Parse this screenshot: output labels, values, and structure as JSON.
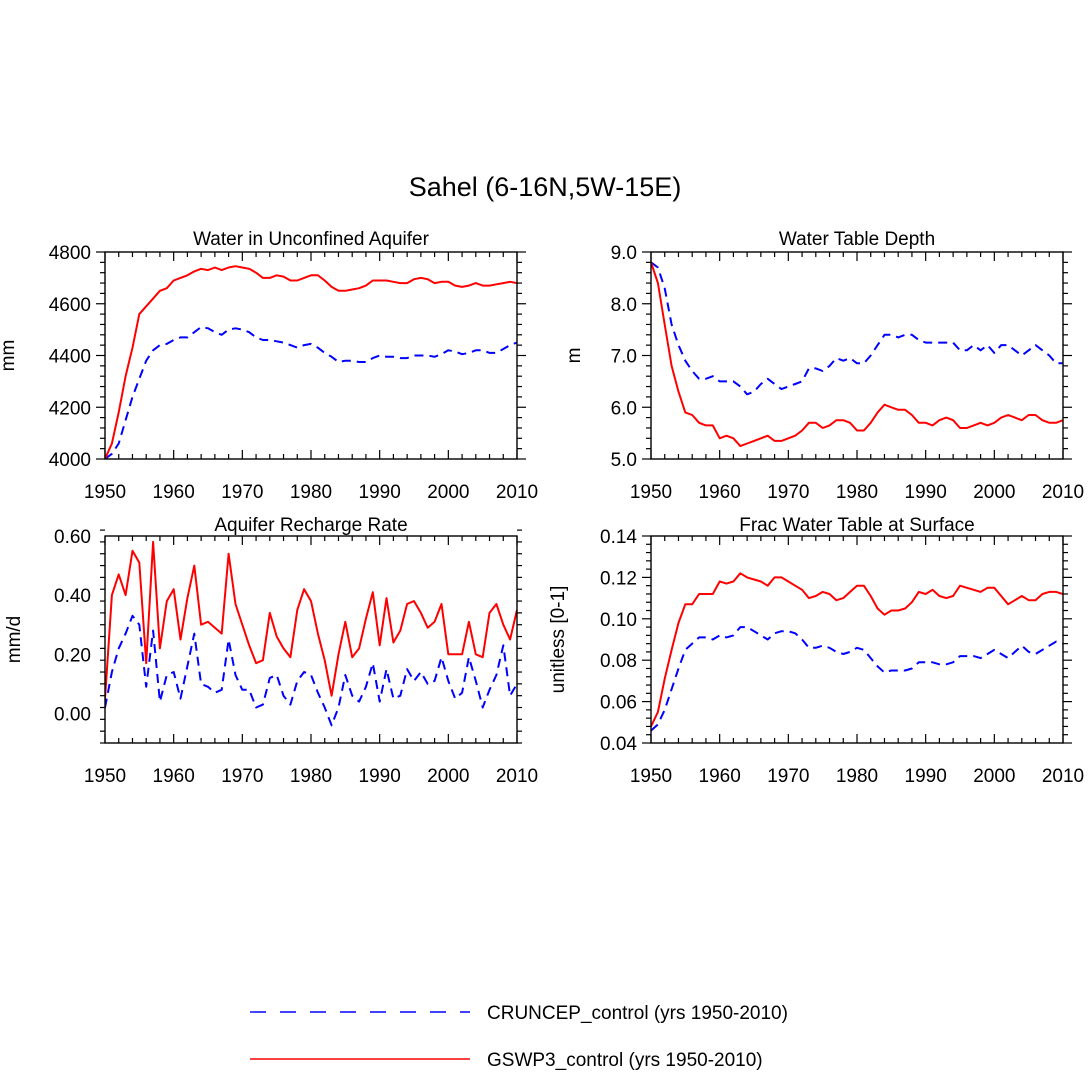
{
  "figure_title": "Sahel (6-16N,5W-15E)",
  "colors": {
    "series_a": "#0000ff",
    "series_b": "#ff0000",
    "axis": "#000000"
  },
  "legend": [
    {
      "name": "CRUNCEP_control (yrs 1950-2010)",
      "style": "dashed",
      "color": "#0000ff"
    },
    {
      "name": "GSWP3_control (yrs 1950-2010)",
      "style": "solid",
      "color": "#ff0000"
    }
  ],
  "chart_data": [
    {
      "type": "line",
      "title": "Water in Unconfined Aquifer",
      "xlabel": "",
      "ylabel": "mm",
      "xlim": [
        1950,
        2010
      ],
      "ylim": [
        4000,
        4800
      ],
      "xticks": [
        1950,
        1960,
        1970,
        1980,
        1990,
        2000,
        2010
      ],
      "xtick_labels": [
        "1950",
        "1960",
        "1970",
        "1980",
        "1990",
        "2000",
        "2010"
      ],
      "yticks": [
        4000,
        4200,
        4400,
        4600,
        4800
      ],
      "ytick_labels": [
        "4000",
        "4200",
        "4400",
        "4600",
        "4800"
      ],
      "x": [
        1950,
        1951,
        1952,
        1953,
        1954,
        1955,
        1956,
        1957,
        1958,
        1959,
        1960,
        1961,
        1962,
        1963,
        1964,
        1965,
        1966,
        1967,
        1968,
        1969,
        1970,
        1971,
        1972,
        1973,
        1974,
        1975,
        1976,
        1977,
        1978,
        1979,
        1980,
        1981,
        1982,
        1983,
        1984,
        1985,
        1986,
        1987,
        1988,
        1989,
        1990,
        1991,
        1992,
        1993,
        1994,
        1995,
        1996,
        1997,
        1998,
        1999,
        2000,
        2001,
        2002,
        2003,
        2004,
        2005,
        2006,
        2007,
        2008,
        2009,
        2010
      ],
      "series": [
        {
          "name": "CRUNCEP_control (yrs 1950-2010)",
          "style": "dashed",
          "values": [
            4000,
            4020,
            4060,
            4150,
            4240,
            4310,
            4380,
            4420,
            4440,
            4445,
            4460,
            4470,
            4470,
            4490,
            4510,
            4505,
            4490,
            4480,
            4500,
            4505,
            4500,
            4490,
            4470,
            4460,
            4460,
            4455,
            4450,
            4440,
            4430,
            4440,
            4445,
            4430,
            4410,
            4395,
            4375,
            4380,
            4380,
            4375,
            4375,
            4390,
            4400,
            4395,
            4395,
            4390,
            4390,
            4400,
            4400,
            4400,
            4395,
            4405,
            4420,
            4415,
            4405,
            4410,
            4420,
            4420,
            4410,
            4410,
            4425,
            4440,
            4450
          ]
        },
        {
          "name": "GSWP3_control (yrs 1950-2010)",
          "style": "solid",
          "values": [
            4000,
            4060,
            4180,
            4320,
            4430,
            4560,
            4590,
            4620,
            4650,
            4660,
            4690,
            4700,
            4710,
            4725,
            4735,
            4730,
            4740,
            4730,
            4740,
            4745,
            4740,
            4735,
            4720,
            4700,
            4700,
            4710,
            4705,
            4690,
            4690,
            4700,
            4710,
            4710,
            4690,
            4665,
            4650,
            4650,
            4655,
            4660,
            4670,
            4690,
            4690,
            4690,
            4685,
            4680,
            4680,
            4695,
            4700,
            4695,
            4680,
            4685,
            4685,
            4670,
            4665,
            4670,
            4680,
            4670,
            4670,
            4675,
            4680,
            4685,
            4680
          ]
        }
      ]
    },
    {
      "type": "line",
      "title": "Water Table Depth",
      "xlabel": "",
      "ylabel": "m",
      "xlim": [
        1950,
        2010
      ],
      "ylim": [
        5.0,
        9.0
      ],
      "xticks": [
        1950,
        1960,
        1970,
        1980,
        1990,
        2000,
        2010
      ],
      "xtick_labels": [
        "1950",
        "1960",
        "1970",
        "1980",
        "1990",
        "2000",
        "2010"
      ],
      "yticks": [
        5,
        6,
        7,
        8,
        9
      ],
      "ytick_labels": [
        "5.0",
        "6.0",
        "7.0",
        "8.0",
        "9.0"
      ],
      "x": [
        1950,
        1951,
        1952,
        1953,
        1954,
        1955,
        1956,
        1957,
        1958,
        1959,
        1960,
        1961,
        1962,
        1963,
        1964,
        1965,
        1966,
        1967,
        1968,
        1969,
        1970,
        1971,
        1972,
        1973,
        1974,
        1975,
        1976,
        1977,
        1978,
        1979,
        1980,
        1981,
        1982,
        1983,
        1984,
        1985,
        1986,
        1987,
        1988,
        1989,
        1990,
        1991,
        1992,
        1993,
        1994,
        1995,
        1996,
        1997,
        1998,
        1999,
        2000,
        2001,
        2002,
        2003,
        2004,
        2005,
        2006,
        2007,
        2008,
        2009,
        2010
      ],
      "series": [
        {
          "name": "CRUNCEP_control (yrs 1950-2010)",
          "style": "dashed",
          "values": [
            8.8,
            8.7,
            8.3,
            7.6,
            7.2,
            6.9,
            6.7,
            6.55,
            6.55,
            6.6,
            6.5,
            6.5,
            6.5,
            6.4,
            6.25,
            6.3,
            6.45,
            6.55,
            6.45,
            6.35,
            6.4,
            6.45,
            6.5,
            6.75,
            6.75,
            6.7,
            6.8,
            6.95,
            6.9,
            6.95,
            6.85,
            6.85,
            7.0,
            7.2,
            7.4,
            7.4,
            7.35,
            7.4,
            7.4,
            7.3,
            7.25,
            7.25,
            7.25,
            7.25,
            7.25,
            7.1,
            7.1,
            7.2,
            7.1,
            7.2,
            7.05,
            7.2,
            7.2,
            7.1,
            7.0,
            7.1,
            7.2,
            7.1,
            7.0,
            6.85,
            6.85
          ]
        },
        {
          "name": "GSWP3_control (yrs 1950-2010)",
          "style": "solid",
          "values": [
            8.8,
            8.4,
            7.6,
            6.8,
            6.3,
            5.9,
            5.85,
            5.7,
            5.65,
            5.65,
            5.4,
            5.45,
            5.4,
            5.25,
            5.3,
            5.35,
            5.4,
            5.45,
            5.35,
            5.35,
            5.4,
            5.45,
            5.55,
            5.7,
            5.7,
            5.6,
            5.65,
            5.75,
            5.75,
            5.7,
            5.55,
            5.55,
            5.7,
            5.9,
            6.05,
            6.0,
            5.95,
            5.95,
            5.85,
            5.7,
            5.7,
            5.65,
            5.75,
            5.8,
            5.75,
            5.6,
            5.6,
            5.65,
            5.7,
            5.65,
            5.7,
            5.8,
            5.85,
            5.8,
            5.75,
            5.85,
            5.85,
            5.75,
            5.7,
            5.7,
            5.75
          ]
        }
      ]
    },
    {
      "type": "line",
      "title": "Aquifer Recharge Rate",
      "xlabel": "",
      "ylabel": "mm/d",
      "xlim": [
        1950,
        2010
      ],
      "ylim": [
        -0.1,
        0.6
      ],
      "xticks": [
        1950,
        1960,
        1970,
        1980,
        1990,
        2000,
        2010
      ],
      "xtick_labels": [
        "1950",
        "1960",
        "1970",
        "1980",
        "1990",
        "2000",
        "2010"
      ],
      "yticks": [
        0.0,
        0.2,
        0.4,
        0.6
      ],
      "ytick_labels": [
        "0.00",
        "0.20",
        "0.40",
        "0.60"
      ],
      "x": [
        1950,
        1951,
        1952,
        1953,
        1954,
        1955,
        1956,
        1957,
        1958,
        1959,
        1960,
        1961,
        1962,
        1963,
        1964,
        1965,
        1966,
        1967,
        1968,
        1969,
        1970,
        1971,
        1972,
        1973,
        1974,
        1975,
        1976,
        1977,
        1978,
        1979,
        1980,
        1981,
        1982,
        1983,
        1984,
        1985,
        1986,
        1987,
        1988,
        1989,
        1990,
        1991,
        1992,
        1993,
        1994,
        1995,
        1996,
        1997,
        1998,
        1999,
        2000,
        2001,
        2002,
        2003,
        2004,
        2005,
        2006,
        2007,
        2008,
        2009,
        2010
      ],
      "series": [
        {
          "name": "CRUNCEP_control (yrs 1950-2010)",
          "style": "dashed",
          "values": [
            0.02,
            0.14,
            0.22,
            0.27,
            0.33,
            0.3,
            0.09,
            0.28,
            0.04,
            0.13,
            0.14,
            0.05,
            0.16,
            0.27,
            0.1,
            0.09,
            0.07,
            0.08,
            0.25,
            0.13,
            0.08,
            0.08,
            0.02,
            0.03,
            0.12,
            0.13,
            0.06,
            0.03,
            0.11,
            0.14,
            0.13,
            0.07,
            0.02,
            -0.04,
            0.02,
            0.13,
            0.06,
            0.04,
            0.09,
            0.17,
            0.04,
            0.15,
            0.05,
            0.06,
            0.15,
            0.11,
            0.14,
            0.1,
            0.11,
            0.19,
            0.11,
            0.05,
            0.07,
            0.19,
            0.11,
            0.02,
            0.08,
            0.13,
            0.23,
            0.06,
            0.1
          ]
        },
        {
          "name": "GSWP3_control (yrs 1950-2010)",
          "style": "solid",
          "values": [
            0.05,
            0.4,
            0.47,
            0.4,
            0.55,
            0.51,
            0.17,
            0.58,
            0.22,
            0.38,
            0.42,
            0.25,
            0.39,
            0.5,
            0.3,
            0.31,
            0.29,
            0.27,
            0.54,
            0.37,
            0.3,
            0.23,
            0.17,
            0.18,
            0.34,
            0.26,
            0.22,
            0.19,
            0.35,
            0.42,
            0.38,
            0.27,
            0.18,
            0.06,
            0.2,
            0.31,
            0.19,
            0.22,
            0.32,
            0.41,
            0.23,
            0.39,
            0.24,
            0.28,
            0.37,
            0.38,
            0.34,
            0.29,
            0.31,
            0.37,
            0.2,
            0.2,
            0.2,
            0.31,
            0.2,
            0.19,
            0.34,
            0.37,
            0.3,
            0.25,
            0.35
          ]
        }
      ]
    },
    {
      "type": "line",
      "title": "Frac Water Table at Surface",
      "xlabel": "",
      "ylabel": "unitless [0-1]",
      "xlim": [
        1950,
        2010
      ],
      "ylim": [
        0.04,
        0.14
      ],
      "xticks": [
        1950,
        1960,
        1970,
        1980,
        1990,
        2000,
        2010
      ],
      "xtick_labels": [
        "1950",
        "1960",
        "1970",
        "1980",
        "1990",
        "2000",
        "2010"
      ],
      "yticks": [
        0.04,
        0.06,
        0.08,
        0.1,
        0.12,
        0.14
      ],
      "ytick_labels": [
        "0.04",
        "0.06",
        "0.08",
        "0.10",
        "0.12",
        "0.14"
      ],
      "x": [
        1950,
        1951,
        1952,
        1953,
        1954,
        1955,
        1956,
        1957,
        1958,
        1959,
        1960,
        1961,
        1962,
        1963,
        1964,
        1965,
        1966,
        1967,
        1968,
        1969,
        1970,
        1971,
        1972,
        1973,
        1974,
        1975,
        1976,
        1977,
        1978,
        1979,
        1980,
        1981,
        1982,
        1983,
        1984,
        1985,
        1986,
        1987,
        1988,
        1989,
        1990,
        1991,
        1992,
        1993,
        1994,
        1995,
        1996,
        1997,
        1998,
        1999,
        2000,
        2001,
        2002,
        2003,
        2004,
        2005,
        2006,
        2007,
        2008,
        2009,
        2010
      ],
      "series": [
        {
          "name": "CRUNCEP_control (yrs 1950-2010)",
          "style": "dashed",
          "values": [
            0.046,
            0.049,
            0.056,
            0.066,
            0.076,
            0.085,
            0.088,
            0.091,
            0.091,
            0.09,
            0.092,
            0.091,
            0.092,
            0.096,
            0.096,
            0.094,
            0.092,
            0.09,
            0.093,
            0.094,
            0.094,
            0.093,
            0.09,
            0.086,
            0.086,
            0.087,
            0.086,
            0.084,
            0.083,
            0.084,
            0.086,
            0.085,
            0.081,
            0.077,
            0.074,
            0.075,
            0.075,
            0.075,
            0.076,
            0.079,
            0.079,
            0.079,
            0.078,
            0.078,
            0.079,
            0.082,
            0.082,
            0.082,
            0.081,
            0.083,
            0.085,
            0.083,
            0.081,
            0.084,
            0.087,
            0.084,
            0.083,
            0.085,
            0.087,
            0.089,
            0.088
          ]
        },
        {
          "name": "GSWP3_control (yrs 1950-2010)",
          "style": "solid",
          "values": [
            0.048,
            0.055,
            0.071,
            0.085,
            0.098,
            0.107,
            0.107,
            0.112,
            0.112,
            0.112,
            0.118,
            0.117,
            0.118,
            0.122,
            0.12,
            0.119,
            0.118,
            0.116,
            0.12,
            0.12,
            0.118,
            0.116,
            0.114,
            0.11,
            0.111,
            0.113,
            0.112,
            0.109,
            0.11,
            0.113,
            0.116,
            0.116,
            0.111,
            0.105,
            0.102,
            0.104,
            0.104,
            0.105,
            0.108,
            0.113,
            0.112,
            0.114,
            0.111,
            0.11,
            0.111,
            0.116,
            0.115,
            0.114,
            0.113,
            0.115,
            0.115,
            0.111,
            0.107,
            0.109,
            0.111,
            0.109,
            0.109,
            0.112,
            0.113,
            0.113,
            0.112
          ]
        }
      ]
    }
  ]
}
